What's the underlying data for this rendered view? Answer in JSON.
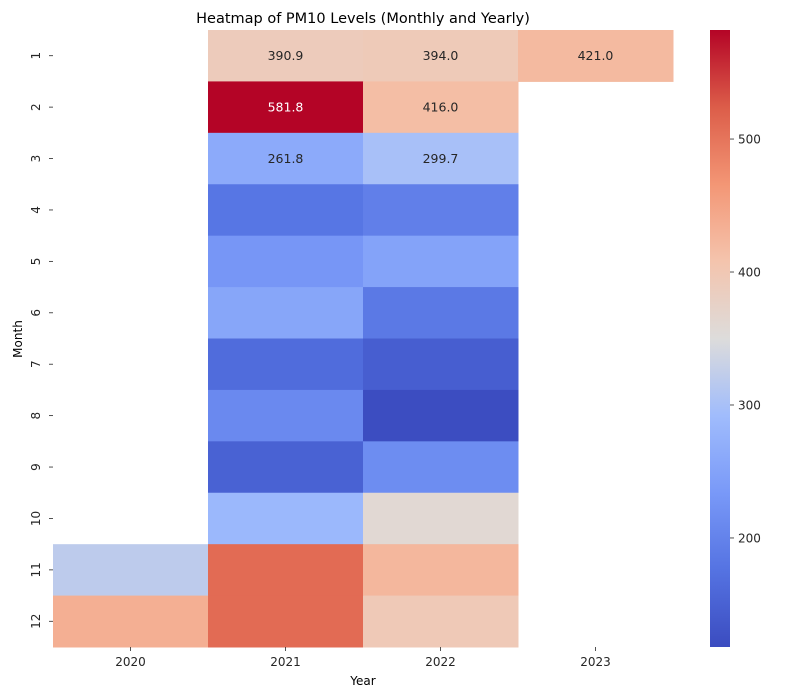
{
  "chart_data": {
    "type": "heatmap",
    "title": "Heatmap of PM10 Levels (Monthly and Yearly)",
    "xlabel": "Year",
    "ylabel": "Month",
    "x_categories": [
      "2020",
      "2021",
      "2022",
      "2023"
    ],
    "y_categories": [
      "1",
      "2",
      "3",
      "4",
      "5",
      "6",
      "7",
      "8",
      "9",
      "10",
      "11",
      "12"
    ],
    "values": [
      [
        null,
        390.9,
        394.0,
        421.0
      ],
      [
        null,
        581.8,
        416.0,
        null
      ],
      [
        null,
        261.8,
        299.7,
        null
      ],
      [
        null,
        180,
        195,
        null
      ],
      [
        null,
        230,
        250,
        null
      ],
      [
        null,
        255,
        185,
        null
      ],
      [
        null,
        165,
        145,
        null
      ],
      [
        null,
        210,
        120,
        null
      ],
      [
        null,
        150,
        215,
        null
      ],
      [
        null,
        285,
        360,
        null
      ],
      [
        320,
        510,
        425,
        null
      ],
      [
        435,
        510,
        395,
        null
      ]
    ],
    "annotated_cells": [
      {
        "row": 0,
        "col": 1,
        "text": "390.9"
      },
      {
        "row": 0,
        "col": 2,
        "text": "394.0"
      },
      {
        "row": 0,
        "col": 3,
        "text": "421.0"
      },
      {
        "row": 1,
        "col": 1,
        "text": "581.8"
      },
      {
        "row": 1,
        "col": 2,
        "text": "416.0"
      },
      {
        "row": 2,
        "col": 1,
        "text": "261.8"
      },
      {
        "row": 2,
        "col": 2,
        "text": "299.7"
      }
    ],
    "colormap": "coolwarm",
    "vmin": 118,
    "vmax": 582,
    "colorbar_ticks": [
      "200",
      "300",
      "400",
      "500"
    ],
    "colorbar_tick_values": [
      200,
      300,
      400,
      500
    ]
  }
}
